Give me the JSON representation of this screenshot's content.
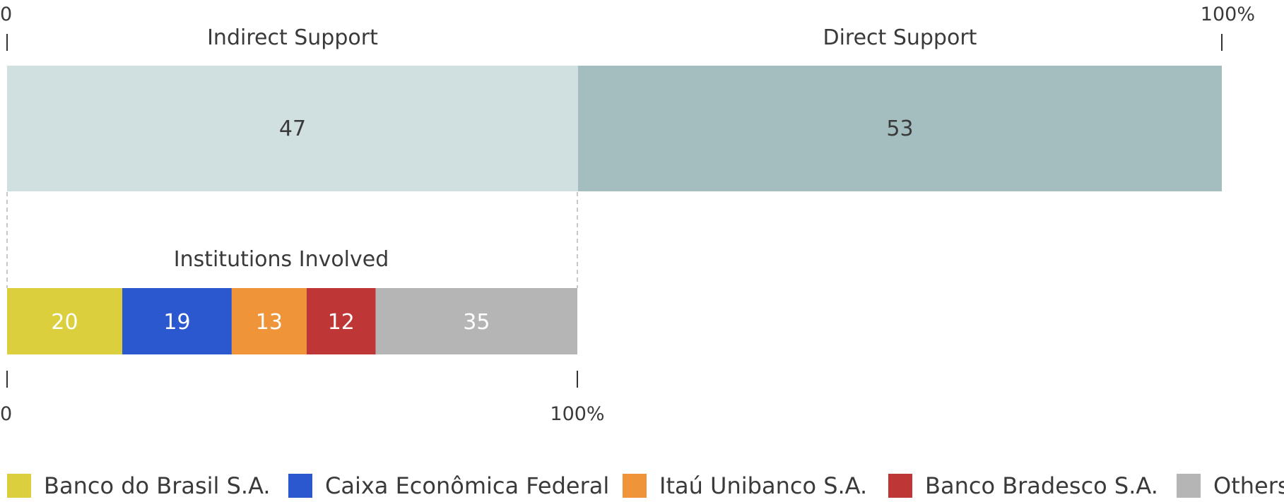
{
  "chart_data": [
    {
      "type": "bar",
      "orientation": "horizontal",
      "stacked": true,
      "normalized": true,
      "xlim": [
        0,
        100
      ],
      "ticks": [
        "0",
        "100%"
      ],
      "grid": false,
      "series": [
        {
          "label": "Indirect Support",
          "value": 47,
          "value_label": "47",
          "color": "#d0dfe0"
        },
        {
          "label": "Direct Support",
          "value": 53,
          "value_label": "53",
          "color": "#a4bebf"
        }
      ]
    },
    {
      "type": "bar",
      "orientation": "horizontal",
      "stacked": true,
      "normalized": true,
      "title": "Institutions Involved",
      "xlim": [
        0,
        100
      ],
      "ticks": [
        "0",
        "100%"
      ],
      "grid": false,
      "legend_position": "bottom",
      "series": [
        {
          "name": "Banco do Brasil S.A.",
          "value": 20,
          "value_label": "20",
          "color": "#dccf3d"
        },
        {
          "name": "Caixa Econômica Federal",
          "value": 19,
          "value_label": "19",
          "color": "#2b57cf"
        },
        {
          "name": "Itaú Unibanco S.A.",
          "value": 13,
          "value_label": "13",
          "color": "#ef9438"
        },
        {
          "name": "Banco Bradesco S.A.",
          "value": 12,
          "value_label": "12",
          "color": "#bf3636"
        },
        {
          "name": "Others",
          "value": 35,
          "value_label": "35",
          "color": "#b5b5b5"
        }
      ]
    }
  ]
}
